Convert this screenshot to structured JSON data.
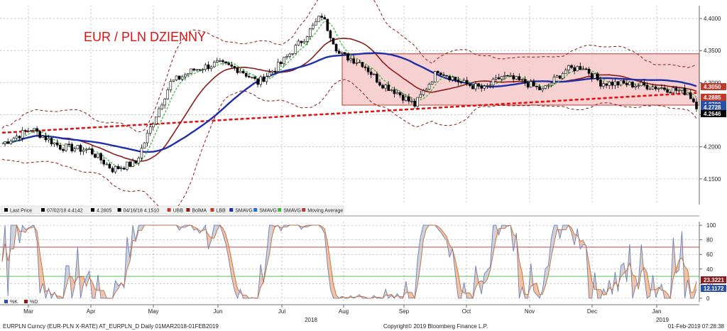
{
  "chart_data": [
    {
      "type": "candlestick",
      "title": "EUR / PLN DZIENNY",
      "yticks": [
        "4.4000",
        "4.3500",
        "4.3000",
        "4.2500",
        "4.2000",
        "4.1500"
      ],
      "ylim": [
        4.11,
        4.42
      ],
      "months": [
        "Mar",
        "Apr",
        "May",
        "Jun",
        "Jul",
        "Aug",
        "Sep",
        "Oct",
        "Nov",
        "Dec",
        "Jan"
      ],
      "years": [
        "2018",
        "2019"
      ],
      "price_tags": [
        {
          "label": "4.3050",
          "value": 4.305,
          "color": "#c0392b"
        },
        {
          "label": "4.2885",
          "value": 4.2885,
          "color": "#c0392b"
        },
        {
          "label": "4.2780",
          "value": 4.278,
          "color": "#2a4fa8"
        },
        {
          "label": "4.2728",
          "value": 4.2728,
          "color": "#2a4fa8"
        },
        {
          "label": "4.2646",
          "value": 4.2646,
          "color": "#000000"
        }
      ],
      "channel": {
        "upper": 4.345,
        "lower": 4.265,
        "from": "Aug",
        "to": "end"
      },
      "legend": [
        {
          "label": "Last Price",
          "color": "#000000"
        },
        {
          "label": "07/02/18 4.4142",
          "color": "#000000"
        },
        {
          "label": "4.2805",
          "color": "#000000"
        },
        {
          "label": "04/16/18 4.1510",
          "color": "#000000"
        },
        {
          "label": "UBB",
          "color": "#c0392b"
        },
        {
          "label": "BolMA",
          "color": "#8b1a1a"
        },
        {
          "label": "LBB",
          "color": "#c0392b"
        },
        {
          "label": "SMAVG",
          "color": "#1f2fa8"
        },
        {
          "label": "SMAVG",
          "color": "#1f6fd8"
        },
        {
          "label": "SMAVG",
          "color": "#3cb83c"
        },
        {
          "label": "Moving Average",
          "color": "#c0392b"
        }
      ]
    },
    {
      "type": "line",
      "yticks": [
        "100",
        "80",
        "60",
        "40",
        "20",
        "0"
      ],
      "ylim": [
        -5,
        105
      ],
      "levels": [
        70,
        30
      ],
      "price_tags": [
        {
          "label": "23.3221",
          "value": 23.3221,
          "color": "#8b1a1a"
        },
        {
          "label": "12.1172",
          "value": 12.1172,
          "color": "#2a4fa8"
        }
      ],
      "legend": [
        {
          "label": "%K",
          "color": "#2a4fa8"
        },
        {
          "label": "%D",
          "color": "#8b1a1a"
        }
      ]
    }
  ],
  "footer": {
    "left": "EURPLN Curncy (EUR-PLN X-RATE) AT_EURPLN_D  Daily 01MAR2018-01FEB2019",
    "center": "Copyright© 2019 Bloomberg Finance L.P.",
    "right": "01-Feb-2019 07:28:38"
  }
}
